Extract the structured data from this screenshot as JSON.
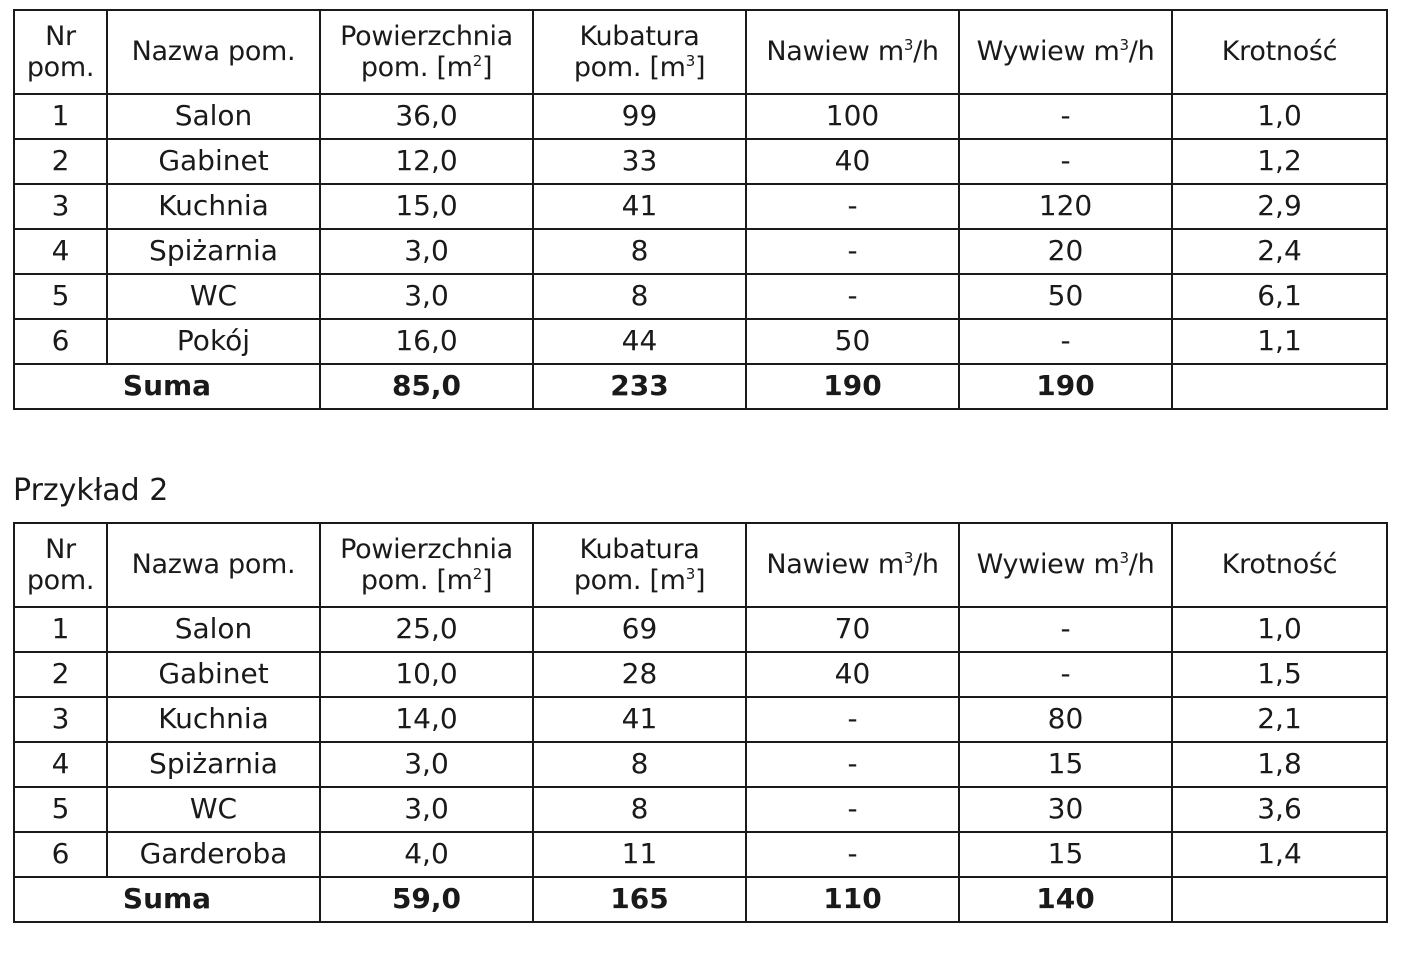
{
  "headers": {
    "nr_line1": "Nr",
    "nr_line2": "pom.",
    "name": "Nazwa pom.",
    "area_line1": "Powierzchnia",
    "area_line2_pre": "pom. [m",
    "area_sup": "2",
    "area_line2_post": "]",
    "volume_line1": "Kubatura",
    "volume_line2_pre": "pom. [m",
    "volume_sup": "3",
    "volume_line2_post": "]",
    "supply_pre": "Nawiew m",
    "supply_sup": "3",
    "supply_post": "/h",
    "exhaust_pre": "Wywiew m",
    "exhaust_sup": "3",
    "exhaust_post": "/h",
    "rate": "Krotność"
  },
  "example1": {
    "rows": [
      {
        "nr": "1",
        "name": "Salon",
        "area": "36,0",
        "volume": "99",
        "supply": "100",
        "exhaust": "-",
        "rate": "1,0"
      },
      {
        "nr": "2",
        "name": "Gabinet",
        "area": "12,0",
        "volume": "33",
        "supply": "40",
        "exhaust": "-",
        "rate": "1,2"
      },
      {
        "nr": "3",
        "name": "Kuchnia",
        "area": "15,0",
        "volume": "41",
        "supply": "-",
        "exhaust": "120",
        "rate": "2,9"
      },
      {
        "nr": "4",
        "name": "Spiżarnia",
        "area": "3,0",
        "volume": "8",
        "supply": "-",
        "exhaust": "20",
        "rate": "2,4"
      },
      {
        "nr": "5",
        "name": "WC",
        "area": "3,0",
        "volume": "8",
        "supply": "-",
        "exhaust": "50",
        "rate": "6,1"
      },
      {
        "nr": "6",
        "name": "Pokój",
        "area": "16,0",
        "volume": "44",
        "supply": "50",
        "exhaust": "-",
        "rate": "1,1"
      }
    ],
    "sum": {
      "label": "Suma",
      "area": "85,0",
      "volume": "233",
      "supply": "190",
      "exhaust": "190",
      "rate": ""
    }
  },
  "example2": {
    "caption": "Przykład 2",
    "rows": [
      {
        "nr": "1",
        "name": "Salon",
        "area": "25,0",
        "volume": "69",
        "supply": "70",
        "exhaust": "-",
        "rate": "1,0"
      },
      {
        "nr": "2",
        "name": "Gabinet",
        "area": "10,0",
        "volume": "28",
        "supply": "40",
        "exhaust": "-",
        "rate": "1,5"
      },
      {
        "nr": "3",
        "name": "Kuchnia",
        "area": "14,0",
        "volume": "41",
        "supply": "-",
        "exhaust": "80",
        "rate": "2,1"
      },
      {
        "nr": "4",
        "name": "Spiżarnia",
        "area": "3,0",
        "volume": "8",
        "supply": "-",
        "exhaust": "15",
        "rate": "1,8"
      },
      {
        "nr": "5",
        "name": "WC",
        "area": "3,0",
        "volume": "8",
        "supply": "-",
        "exhaust": "30",
        "rate": "3,6"
      },
      {
        "nr": "6",
        "name": "Garderoba",
        "area": "4,0",
        "volume": "11",
        "supply": "-",
        "exhaust": "15",
        "rate": "1,4"
      }
    ],
    "sum": {
      "label": "Suma",
      "area": "59,0",
      "volume": "165",
      "supply": "110",
      "exhaust": "140",
      "rate": ""
    }
  }
}
